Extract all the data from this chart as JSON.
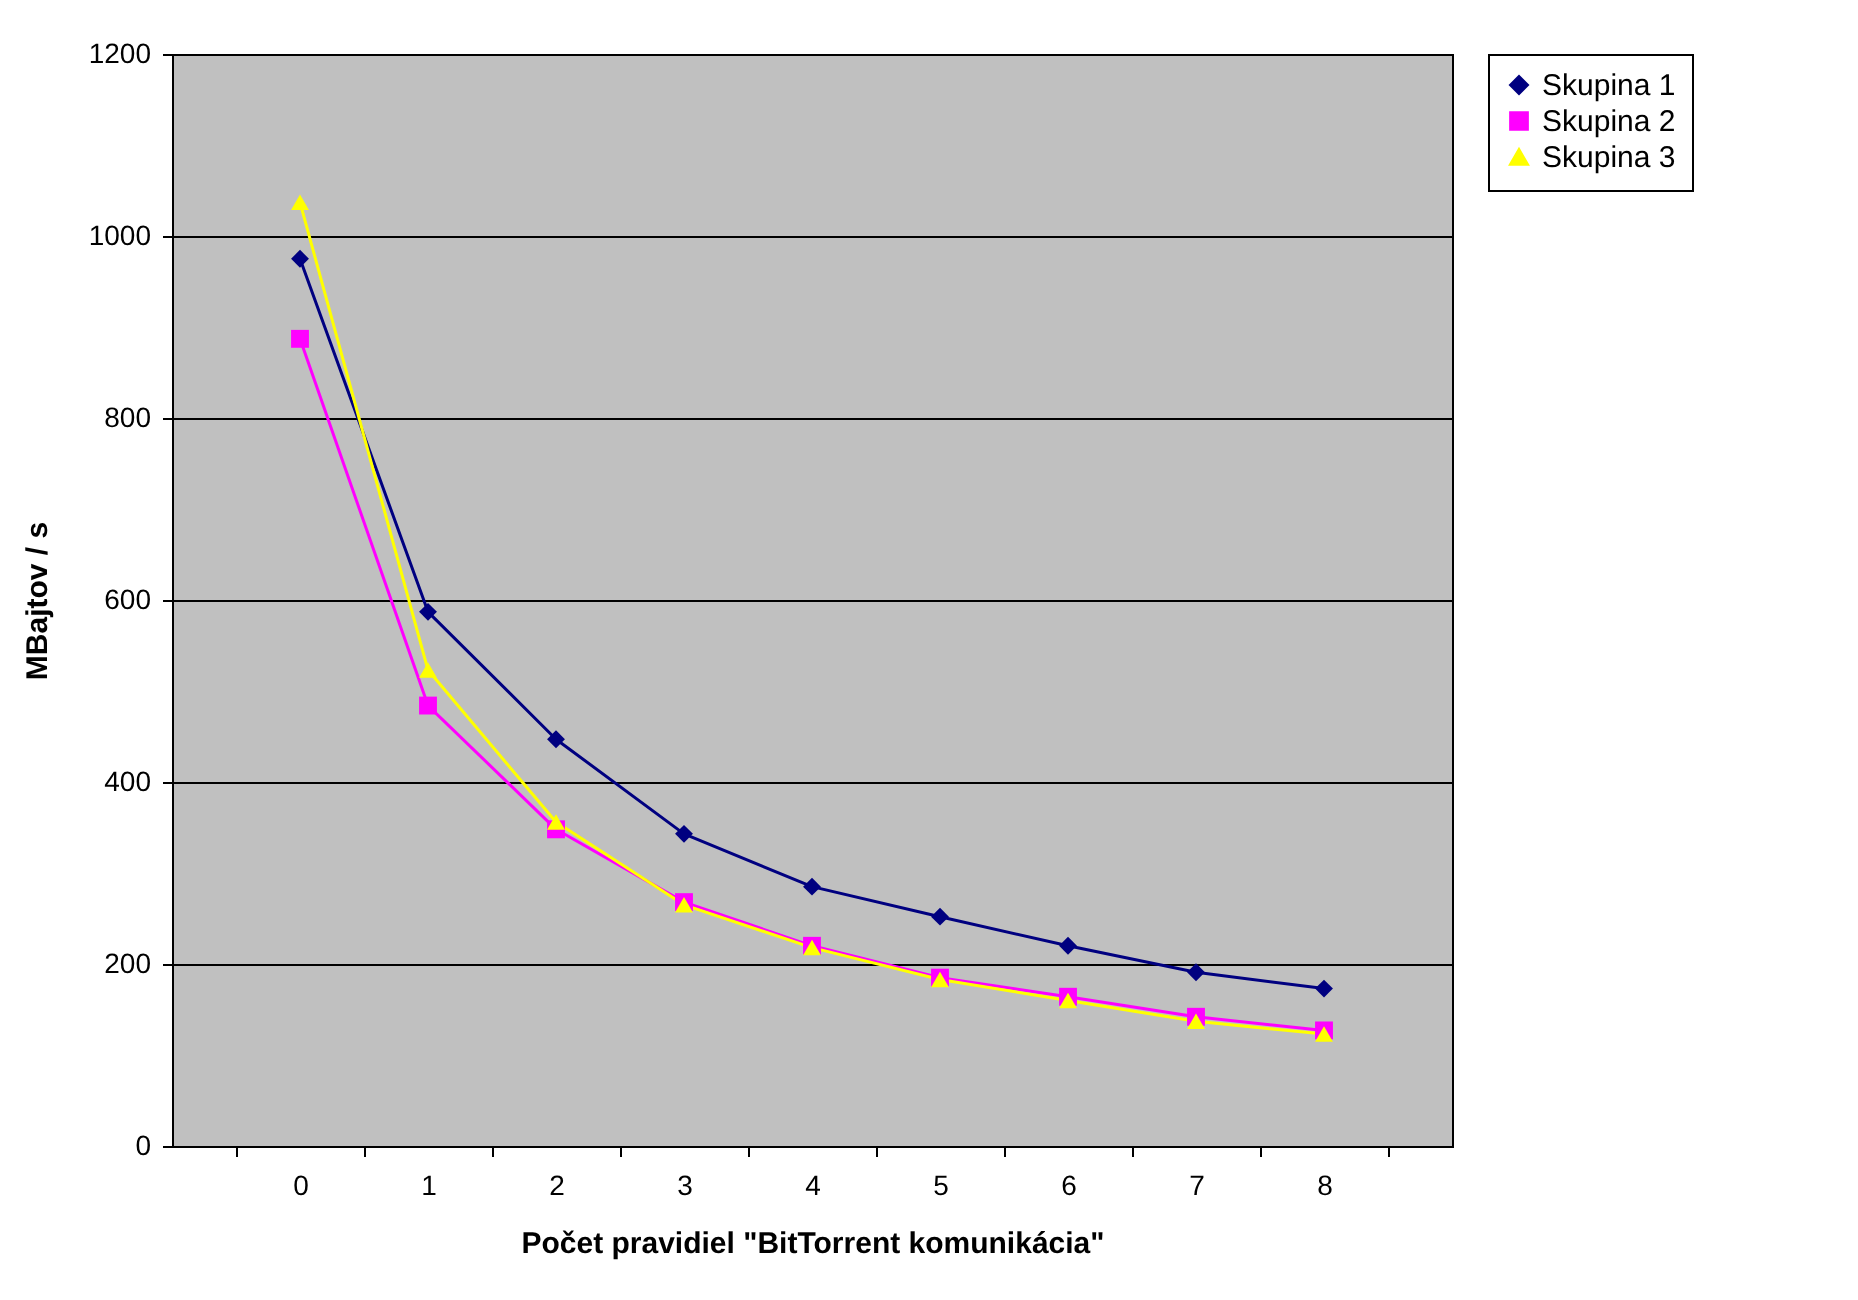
{
  "chart_data": {
    "type": "line",
    "xlabel": "Počet pravidiel \"BitTorrent komunikácia\"",
    "ylabel": "MBajtov / s",
    "categories": [
      "0",
      "1",
      "2",
      "3",
      "4",
      "5",
      "6",
      "7",
      "8"
    ],
    "series": [
      {
        "name": "Skupina 1",
        "color": "#000080",
        "marker": "diamond",
        "values": [
          975,
          587,
          447,
          343,
          285,
          252,
          220,
          191,
          173
        ]
      },
      {
        "name": "Skupina 2",
        "color": "#ff00ff",
        "marker": "square",
        "values": [
          887,
          484,
          348,
          268,
          220,
          185,
          164,
          142,
          127
        ]
      },
      {
        "name": "Skupina 3",
        "color": "#ffff00",
        "marker": "triangle",
        "values": [
          1037,
          523,
          356,
          265,
          218,
          183,
          160,
          137,
          123
        ]
      }
    ],
    "ylim": [
      0,
      1200
    ],
    "yticks": [
      0,
      200,
      400,
      600,
      800,
      1000,
      1200
    ],
    "grid": "y",
    "legend": "right"
  }
}
